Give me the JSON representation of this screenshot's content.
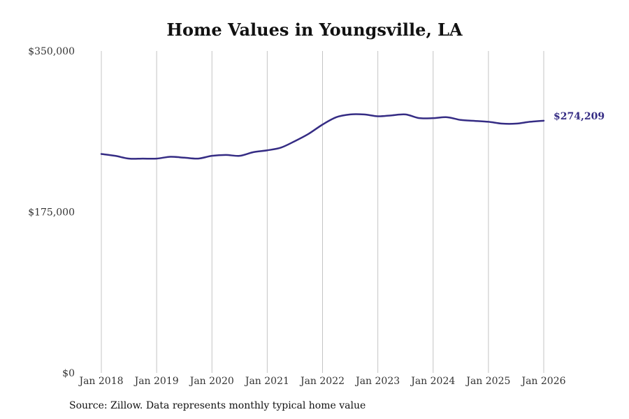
{
  "chart_data": {
    "type": "line",
    "title": "Home Values in Youngsville, LA",
    "source": "Source: Zillow. Data represents monthly typical home value",
    "xlabel": "",
    "ylabel": "",
    "x_ticks": [
      "Jan 2018",
      "Jan 2019",
      "Jan 2020",
      "Jan 2021",
      "Jan 2022",
      "Jan 2023",
      "Jan 2024",
      "Jan 2025",
      "Jan 2026"
    ],
    "y_ticks": [
      "$0",
      "$175,000",
      "$350,000"
    ],
    "ylim": [
      0,
      350000
    ],
    "xlim": [
      2018.0,
      2026.0
    ],
    "grid": "vertical",
    "series": [
      {
        "name": "Typical home value",
        "color": "#352c84",
        "end_label": "$274,209",
        "x": [
          2018.0,
          2018.25,
          2018.5,
          2018.75,
          2019.0,
          2019.25,
          2019.5,
          2019.75,
          2020.0,
          2020.25,
          2020.5,
          2020.75,
          2021.0,
          2021.25,
          2021.5,
          2021.75,
          2022.0,
          2022.25,
          2022.5,
          2022.75,
          2023.0,
          2023.25,
          2023.5,
          2023.75,
          2024.0,
          2024.25,
          2024.5,
          2024.75,
          2025.0,
          2025.25,
          2025.5,
          2025.75,
          2026.0
        ],
        "values": [
          238000,
          236000,
          233000,
          233000,
          233000,
          235000,
          234000,
          233000,
          236000,
          237000,
          236000,
          240000,
          242000,
          245000,
          252000,
          260000,
          270000,
          278000,
          281000,
          281000,
          279000,
          280000,
          281000,
          277000,
          277000,
          278000,
          275000,
          274000,
          273000,
          271000,
          271000,
          273000,
          274209
        ]
      }
    ]
  }
}
